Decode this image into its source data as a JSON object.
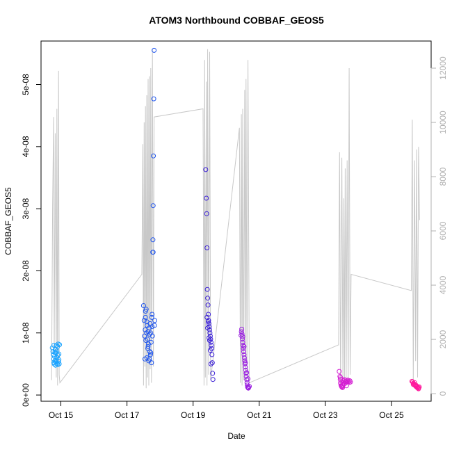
{
  "chart_data": {
    "type": "scatter",
    "title": "ATOM3 Northbound COBBAF_GEOS5",
    "xlabel": "Date",
    "ylabel": "COBBAF_GEOS5",
    "x_ticks": [
      {
        "day": 15,
        "label": "Oct 15"
      },
      {
        "day": 17,
        "label": "Oct 17"
      },
      {
        "day": 19,
        "label": "Oct 19"
      },
      {
        "day": 21,
        "label": "Oct 21"
      },
      {
        "day": 23,
        "label": "Oct 23"
      },
      {
        "day": 25,
        "label": "Oct 25"
      }
    ],
    "xlim": [
      "Oct 14.4",
      "Oct 26.2"
    ],
    "y_ticks": [
      {
        "value": 0,
        "label": "0e+00"
      },
      {
        "value": 1e-08,
        "label": "1e-08"
      },
      {
        "value": 2e-08,
        "label": "2e-08"
      },
      {
        "value": 3e-08,
        "label": "3e-08"
      },
      {
        "value": 4e-08,
        "label": "4e-08"
      },
      {
        "value": 5e-08,
        "label": "5e-08"
      }
    ],
    "ylim": [
      -1e-09,
      5.7e-08
    ],
    "y2_label": "",
    "y2_ticks": [
      {
        "value": 0,
        "label": "0"
      },
      {
        "value": 2000,
        "label": "2000"
      },
      {
        "value": 4000,
        "label": "4000"
      },
      {
        "value": 6000,
        "label": "6000"
      },
      {
        "value": 8000,
        "label": "8000"
      },
      {
        "value": 10000,
        "label": "10000"
      },
      {
        "value": 12000,
        "label": "12000"
      }
    ],
    "y2lim": [
      -280,
      13000
    ],
    "altitude_color": "#c8c8c8",
    "altitude_trace": [
      [
        14.72,
        500
      ],
      [
        14.75,
        6800
      ],
      [
        14.78,
        10200
      ],
      [
        14.8,
        1500
      ],
      [
        14.83,
        9600
      ],
      [
        14.86,
        600
      ],
      [
        14.88,
        10500
      ],
      [
        14.9,
        300
      ],
      [
        14.93,
        11900
      ],
      [
        14.95,
        700
      ],
      [
        14.97,
        400
      ],
      [
        17.45,
        4400
      ],
      [
        17.48,
        9200
      ],
      [
        17.5,
        300
      ],
      [
        17.52,
        10000
      ],
      [
        17.54,
        1000
      ],
      [
        17.56,
        10600
      ],
      [
        17.58,
        200
      ],
      [
        17.6,
        11000
      ],
      [
        17.62,
        600
      ],
      [
        17.64,
        11600
      ],
      [
        17.66,
        300
      ],
      [
        17.68,
        11700
      ],
      [
        17.7,
        900
      ],
      [
        17.72,
        12000
      ],
      [
        17.74,
        400
      ],
      [
        17.77,
        12700
      ],
      [
        17.8,
        1000
      ],
      [
        17.82,
        10200
      ],
      [
        19.3,
        10500
      ],
      [
        19.33,
        300
      ],
      [
        19.35,
        12300
      ],
      [
        19.37,
        600
      ],
      [
        19.4,
        11500
      ],
      [
        19.42,
        300
      ],
      [
        19.44,
        12700
      ],
      [
        19.47,
        700
      ],
      [
        19.5,
        12600
      ],
      [
        19.53,
        500
      ],
      [
        20.4,
        9800
      ],
      [
        20.43,
        400
      ],
      [
        20.46,
        10300
      ],
      [
        20.48,
        300
      ],
      [
        20.5,
        10500
      ],
      [
        20.53,
        500
      ],
      [
        20.56,
        11200
      ],
      [
        20.58,
        300
      ],
      [
        20.6,
        11600
      ],
      [
        20.63,
        600
      ],
      [
        20.66,
        12300
      ],
      [
        20.7,
        400
      ],
      [
        23.4,
        1800
      ],
      [
        23.43,
        8900
      ],
      [
        23.46,
        300
      ],
      [
        23.5,
        8700
      ],
      [
        23.53,
        500
      ],
      [
        23.56,
        7200
      ],
      [
        23.58,
        200
      ],
      [
        23.6,
        8300
      ],
      [
        23.63,
        600
      ],
      [
        23.66,
        8600
      ],
      [
        23.69,
        300
      ],
      [
        23.72,
        12000
      ],
      [
        23.75,
        700
      ],
      [
        23.78,
        4400
      ],
      [
        25.6,
        3800
      ],
      [
        25.63,
        10100
      ],
      [
        25.66,
        400
      ],
      [
        25.7,
        8600
      ],
      [
        25.73,
        1200
      ],
      [
        25.76,
        9000
      ],
      [
        25.79,
        600
      ],
      [
        25.82,
        9100
      ],
      [
        25.85,
        6400
      ]
    ],
    "series": [
      {
        "color": "#1aa3ff",
        "points": [
          [
            14.74,
            7.6e-09
          ],
          [
            14.76,
            7e-09
          ],
          [
            14.77,
            6.5e-09
          ],
          [
            14.78,
            5.8e-09
          ],
          [
            14.79,
            5.2e-09
          ],
          [
            14.8,
            5e-09
          ],
          [
            14.81,
            6.2e-09
          ],
          [
            14.82,
            5.5e-09
          ],
          [
            14.83,
            7.3e-09
          ],
          [
            14.84,
            4.8e-09
          ],
          [
            14.85,
            6.8e-09
          ],
          [
            14.86,
            5.6e-09
          ],
          [
            14.87,
            8e-09
          ],
          [
            14.88,
            6e-09
          ],
          [
            14.89,
            5.1e-09
          ],
          [
            14.9,
            7.8e-09
          ],
          [
            14.91,
            4.9e-09
          ],
          [
            14.92,
            8.2e-09
          ],
          [
            14.93,
            5.4e-09
          ],
          [
            14.94,
            6.6e-09
          ],
          [
            14.95,
            5e-09
          ],
          [
            14.96,
            8.1e-09
          ],
          [
            14.79,
            8e-09
          ],
          [
            14.82,
            6.9e-09
          ],
          [
            14.85,
            5.3e-09
          ],
          [
            14.88,
            7.1e-09
          ],
          [
            14.91,
            6.4e-09
          ],
          [
            14.94,
            5.7e-09
          ]
        ]
      },
      {
        "color": "#1f55ee",
        "points": [
          [
            17.5,
            1.44e-08
          ],
          [
            17.52,
            1.2e-08
          ],
          [
            17.53,
            9.5e-09
          ],
          [
            17.54,
            5.8e-09
          ],
          [
            17.55,
            1.05e-08
          ],
          [
            17.56,
            1.25e-08
          ],
          [
            17.57,
            8.8e-09
          ],
          [
            17.58,
            1.38e-08
          ],
          [
            17.59,
            1e-08
          ],
          [
            17.6,
            6e-09
          ],
          [
            17.61,
            1.12e-08
          ],
          [
            17.62,
            9e-09
          ],
          [
            17.63,
            7.5e-09
          ],
          [
            17.64,
            1.02e-08
          ],
          [
            17.65,
            8.2e-09
          ],
          [
            17.66,
            5.5e-09
          ],
          [
            17.67,
            1.08e-08
          ],
          [
            17.68,
            9.8e-09
          ],
          [
            17.69,
            7e-09
          ],
          [
            17.7,
            1.15e-08
          ],
          [
            17.71,
            6.5e-09
          ],
          [
            17.72,
            1e-08
          ],
          [
            17.73,
            8.5e-09
          ],
          [
            17.74,
            5.2e-09
          ],
          [
            17.75,
            1.25e-08
          ],
          [
            17.76,
            1.3e-08
          ],
          [
            17.77,
            9.5e-09
          ],
          [
            17.78,
            2.3e-08
          ],
          [
            17.785,
            2.5e-08
          ],
          [
            17.79,
            3.05e-08
          ],
          [
            17.8,
            3.85e-08
          ],
          [
            17.81,
            4.77e-08
          ],
          [
            17.82,
            5.55e-08
          ],
          [
            17.79,
            2.3e-08
          ],
          [
            17.83,
            1.12e-08
          ],
          [
            17.84,
            1.2e-08
          ],
          [
            17.56,
            1.35e-08
          ],
          [
            17.6,
            1.18e-08
          ],
          [
            17.64,
            7.8e-09
          ],
          [
            17.68,
            5.8e-09
          ],
          [
            17.72,
            6.8e-09
          ],
          [
            17.76,
            1.1e-08
          ]
        ]
      },
      {
        "color": "#3a1fd6",
        "points": [
          [
            19.38,
            3.63e-08
          ],
          [
            19.4,
            3.17e-08
          ],
          [
            19.41,
            2.92e-08
          ],
          [
            19.42,
            2.37e-08
          ],
          [
            19.43,
            1.7e-08
          ],
          [
            19.44,
            1.56e-08
          ],
          [
            19.45,
            1.45e-08
          ],
          [
            19.46,
            1.3e-08
          ],
          [
            19.47,
            1.2e-08
          ],
          [
            19.48,
            1.15e-08
          ],
          [
            19.49,
            1.1e-08
          ],
          [
            19.5,
            1.05e-08
          ],
          [
            19.51,
            1e-08
          ],
          [
            19.52,
            9.5e-09
          ],
          [
            19.53,
            9e-09
          ],
          [
            19.54,
            8.5e-09
          ],
          [
            19.55,
            8e-09
          ],
          [
            19.56,
            7.5e-09
          ],
          [
            19.57,
            6.5e-09
          ],
          [
            19.58,
            5.2e-09
          ],
          [
            19.59,
            3.5e-09
          ],
          [
            19.6,
            2.5e-09
          ],
          [
            19.42,
            1.25e-08
          ],
          [
            19.46,
            1.18e-08
          ],
          [
            19.5,
            8.8e-09
          ],
          [
            19.54,
            5e-09
          ],
          [
            19.44,
            1.08e-08
          ],
          [
            19.48,
            9.2e-09
          ],
          [
            19.52,
            7.2e-09
          ]
        ]
      },
      {
        "color": "#9a1ee0",
        "points": [
          [
            20.45,
            9.6e-09
          ],
          [
            20.46,
            1.02e-08
          ],
          [
            20.47,
            1.06e-08
          ],
          [
            20.48,
            9.8e-09
          ],
          [
            20.49,
            9e-09
          ],
          [
            20.5,
            8.5e-09
          ],
          [
            20.51,
            8e-09
          ],
          [
            20.52,
            7.5e-09
          ],
          [
            20.53,
            7e-09
          ],
          [
            20.54,
            6.5e-09
          ],
          [
            20.55,
            6e-09
          ],
          [
            20.56,
            5.5e-09
          ],
          [
            20.57,
            5e-09
          ],
          [
            20.58,
            4.5e-09
          ],
          [
            20.59,
            4e-09
          ],
          [
            20.6,
            3.5e-09
          ],
          [
            20.61,
            3e-09
          ],
          [
            20.62,
            2.5e-09
          ],
          [
            20.63,
            2e-09
          ],
          [
            20.64,
            1.6e-09
          ],
          [
            20.65,
            1.3e-09
          ],
          [
            20.66,
            1.2e-09
          ],
          [
            20.67,
            1.1e-09
          ],
          [
            20.68,
            1.2e-09
          ],
          [
            20.5,
            9.4e-09
          ],
          [
            20.54,
            7.8e-09
          ],
          [
            20.58,
            5.2e-09
          ],
          [
            20.62,
            3.6e-09
          ],
          [
            20.66,
            2.6e-09
          ],
          [
            20.7,
            1.4e-09
          ]
        ]
      },
      {
        "color": "#d41ed2",
        "points": [
          [
            23.42,
            3.8e-09
          ],
          [
            23.44,
            3e-09
          ],
          [
            23.45,
            2.5e-09
          ],
          [
            23.46,
            2e-09
          ],
          [
            23.47,
            1.7e-09
          ],
          [
            23.48,
            1.5e-09
          ],
          [
            23.49,
            1.4e-09
          ],
          [
            23.5,
            1.3e-09
          ],
          [
            23.52,
            1.6e-09
          ],
          [
            23.54,
            2e-09
          ],
          [
            23.56,
            2.3e-09
          ],
          [
            23.58,
            2.5e-09
          ],
          [
            23.6,
            2.2e-09
          ],
          [
            23.62,
            2e-09
          ],
          [
            23.64,
            2.3e-09
          ],
          [
            23.66,
            2.1e-09
          ],
          [
            23.68,
            2.4e-09
          ],
          [
            23.7,
            2.2e-09
          ],
          [
            23.72,
            2e-09
          ],
          [
            23.74,
            2.3e-09
          ],
          [
            23.76,
            2.1e-09
          ],
          [
            23.46,
            2.8e-09
          ],
          [
            23.52,
            1.2e-09
          ],
          [
            23.58,
            1.8e-09
          ],
          [
            23.64,
            1.5e-09
          ]
        ]
      },
      {
        "color": "#ff1a9c",
        "points": [
          [
            25.62,
            2.2e-09
          ],
          [
            25.64,
            2.1e-09
          ],
          [
            25.66,
            1.9e-09
          ],
          [
            25.68,
            1.8e-09
          ],
          [
            25.7,
            1.6e-09
          ],
          [
            25.72,
            1.5e-09
          ],
          [
            25.74,
            1.4e-09
          ],
          [
            25.76,
            1.3e-09
          ],
          [
            25.78,
            1.2e-09
          ],
          [
            25.8,
            1.1e-09
          ],
          [
            25.82,
            1.2e-09
          ],
          [
            25.84,
            1.3e-09
          ],
          [
            25.66,
            1.7e-09
          ],
          [
            25.7,
            2e-09
          ],
          [
            25.74,
            1.6e-09
          ],
          [
            25.78,
            1.4e-09
          ],
          [
            25.82,
            1e-09
          ]
        ]
      }
    ]
  }
}
